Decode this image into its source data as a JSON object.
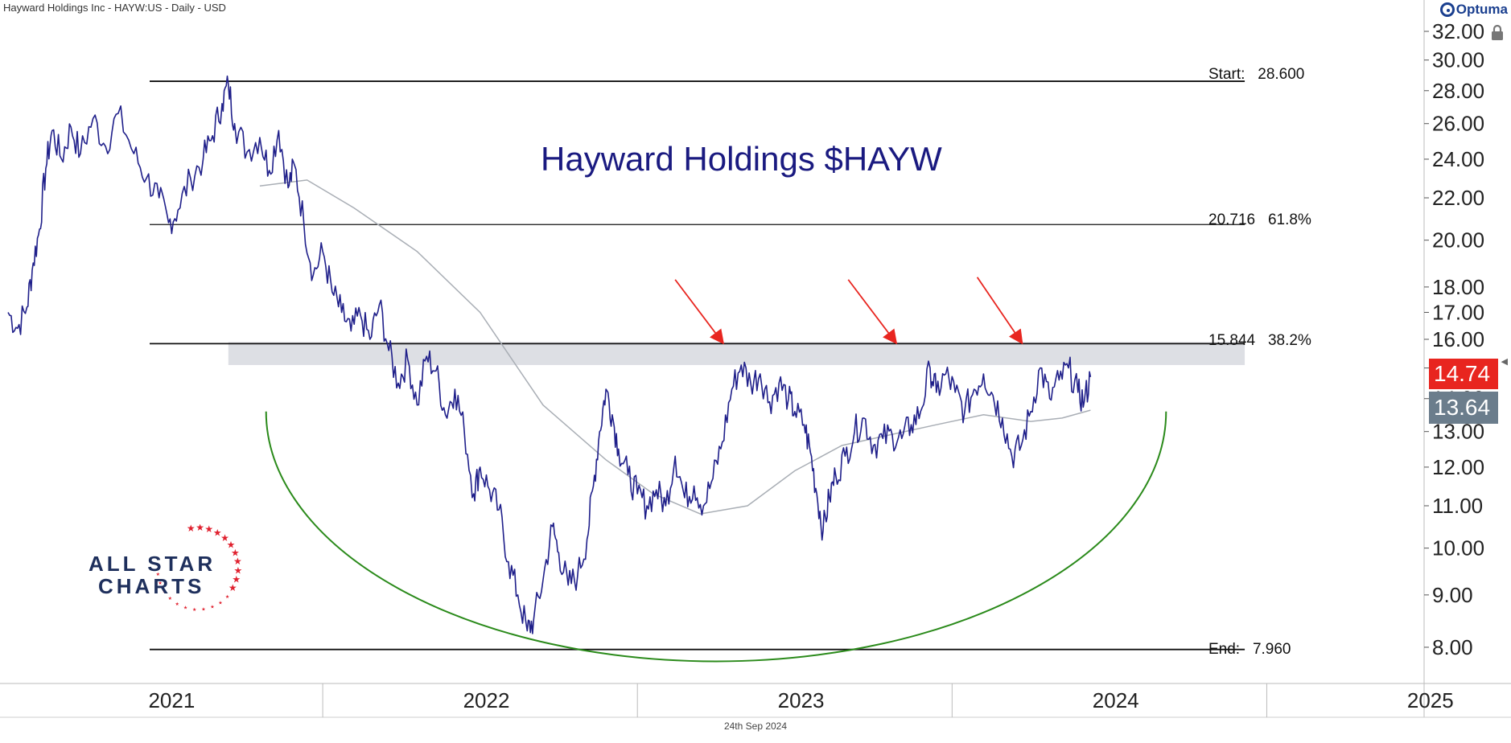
{
  "header": {
    "instrument": "Hayward Holdings Inc - HAYW:US - Daily - USD",
    "brand": "Optuma",
    "date_footer": "24th Sep 2024"
  },
  "logo": {
    "line1": "ALL STAR",
    "line2": "CHARTS",
    "star_color": "#e0202e",
    "text_color": "#1e2f5c"
  },
  "price_tags": {
    "last": "14.74",
    "moving_average": "13.64"
  },
  "colors": {
    "price": "#1f1f8a",
    "moving_average": "#a9aeb5",
    "arc": "#2a8a1a",
    "arrows": "#e8251f",
    "zone": "#d9dce1",
    "levels": "#111111",
    "tag_last": "#e8251f",
    "tag_ma": "#6b7d8c"
  },
  "chart_data": {
    "type": "line",
    "title": "Hayward Holdings $HAYW",
    "scale": "log",
    "ylim": [
      7.4,
      33.0
    ],
    "y_ticks": [
      "32.00",
      "30.00",
      "28.00",
      "26.00",
      "24.00",
      "22.00",
      "20.00",
      "18.00",
      "17.00",
      "16.00",
      "15.00",
      "14.00",
      "13.00",
      "12.00",
      "11.00",
      "10.00",
      "9.00",
      "8.00"
    ],
    "x_range": [
      2021.0,
      2025.5
    ],
    "x_labels": [
      "2021",
      "2022",
      "2023",
      "2024",
      "2025"
    ],
    "levels": [
      {
        "label": "Start:",
        "value_text": "28.600",
        "price": 28.6
      },
      {
        "label": "20.716",
        "value_text": "61.8%",
        "price": 20.716
      },
      {
        "label": "15.844",
        "value_text": "38.2%",
        "price": 15.844
      },
      {
        "label": "End:",
        "value_text": "7.960",
        "price": 7.96
      }
    ],
    "resistance_zone": [
      15.1,
      15.9
    ],
    "series": [
      {
        "points": [
          [
            2021.0,
            17.0
          ],
          [
            2021.03,
            16.4
          ],
          [
            2021.06,
            17.2
          ],
          [
            2021.08,
            19.0
          ],
          [
            2021.1,
            20.5
          ],
          [
            2021.12,
            23.5
          ],
          [
            2021.14,
            25.6
          ],
          [
            2021.17,
            24.0
          ],
          [
            2021.2,
            25.8
          ],
          [
            2021.23,
            24.3
          ],
          [
            2021.27,
            26.3
          ],
          [
            2021.31,
            24.7
          ],
          [
            2021.35,
            26.6
          ],
          [
            2021.4,
            24.3
          ],
          [
            2021.44,
            23.0
          ],
          [
            2021.48,
            22.0
          ],
          [
            2021.51,
            20.8
          ],
          [
            2021.54,
            21.4
          ],
          [
            2021.58,
            23.0
          ],
          [
            2021.62,
            24.0
          ],
          [
            2021.65,
            25.3
          ],
          [
            2021.68,
            27.2
          ],
          [
            2021.7,
            28.4
          ],
          [
            2021.72,
            26.0
          ],
          [
            2021.76,
            24.4
          ],
          [
            2021.8,
            25.2
          ],
          [
            2021.83,
            23.4
          ],
          [
            2021.86,
            25.6
          ],
          [
            2021.89,
            22.5
          ],
          [
            2021.91,
            23.7
          ],
          [
            2021.94,
            20.8
          ],
          [
            2021.97,
            18.5
          ],
          [
            2022.0,
            19.5
          ],
          [
            2022.03,
            17.8
          ],
          [
            2022.06,
            17.0
          ],
          [
            2022.09,
            16.3
          ],
          [
            2022.12,
            16.9
          ],
          [
            2022.15,
            16.0
          ],
          [
            2022.18,
            17.3
          ],
          [
            2022.21,
            15.6
          ],
          [
            2022.24,
            14.5
          ],
          [
            2022.27,
            15.3
          ],
          [
            2022.3,
            13.8
          ],
          [
            2022.33,
            15.4
          ],
          [
            2022.36,
            14.9
          ],
          [
            2022.39,
            13.5
          ],
          [
            2022.42,
            14.3
          ],
          [
            2022.45,
            13.0
          ],
          [
            2022.48,
            11.3
          ],
          [
            2022.5,
            12.0
          ],
          [
            2022.53,
            11.4
          ],
          [
            2022.56,
            10.9
          ],
          [
            2022.59,
            9.7
          ],
          [
            2022.62,
            9.0
          ],
          [
            2022.65,
            8.3
          ],
          [
            2022.67,
            8.5
          ],
          [
            2022.7,
            9.3
          ],
          [
            2022.73,
            10.5
          ],
          [
            2022.75,
            9.9
          ],
          [
            2022.78,
            9.2
          ],
          [
            2022.81,
            9.4
          ],
          [
            2022.84,
            10.2
          ],
          [
            2022.86,
            11.5
          ],
          [
            2022.88,
            13.0
          ],
          [
            2022.9,
            14.3
          ],
          [
            2022.92,
            13.5
          ],
          [
            2022.94,
            12.5
          ],
          [
            2022.97,
            11.8
          ],
          [
            2023.0,
            11.3
          ],
          [
            2023.03,
            11.0
          ],
          [
            2023.06,
            11.4
          ],
          [
            2023.09,
            11.0
          ],
          [
            2023.12,
            12.3
          ],
          [
            2023.15,
            11.2
          ],
          [
            2023.18,
            11.5
          ],
          [
            2023.21,
            11.0
          ],
          [
            2023.24,
            11.7
          ],
          [
            2023.27,
            12.7
          ],
          [
            2023.3,
            14.3
          ],
          [
            2023.33,
            15.1
          ],
          [
            2023.36,
            14.5
          ],
          [
            2023.39,
            14.8
          ],
          [
            2023.42,
            13.9
          ],
          [
            2023.45,
            14.5
          ],
          [
            2023.48,
            14.0
          ],
          [
            2023.5,
            13.6
          ],
          [
            2023.53,
            13.2
          ],
          [
            2023.55,
            12.4
          ],
          [
            2023.57,
            11.3
          ],
          [
            2023.59,
            10.4
          ],
          [
            2023.61,
            11.2
          ],
          [
            2023.63,
            11.8
          ],
          [
            2023.66,
            12.3
          ],
          [
            2023.69,
            13.0
          ],
          [
            2023.72,
            13.4
          ],
          [
            2023.75,
            12.6
          ],
          [
            2023.78,
            12.8
          ],
          [
            2023.81,
            12.9
          ],
          [
            2023.84,
            12.8
          ],
          [
            2023.87,
            13.2
          ],
          [
            2023.9,
            13.6
          ],
          [
            2023.93,
            15.0
          ],
          [
            2023.95,
            14.2
          ],
          [
            2023.98,
            14.8
          ],
          [
            2024.01,
            14.2
          ],
          [
            2024.04,
            13.6
          ],
          [
            2024.07,
            14.3
          ],
          [
            2024.1,
            14.8
          ],
          [
            2024.13,
            14.1
          ],
          [
            2024.16,
            13.4
          ],
          [
            2024.19,
            12.3
          ],
          [
            2024.22,
            12.6
          ],
          [
            2024.25,
            13.6
          ],
          [
            2024.28,
            15.0
          ],
          [
            2024.31,
            14.0
          ],
          [
            2024.34,
            14.6
          ],
          [
            2024.37,
            15.0
          ],
          [
            2024.4,
            14.2
          ],
          [
            2024.42,
            13.9
          ],
          [
            2024.44,
            14.7
          ]
        ]
      },
      {
        "points": [
          [
            2021.8,
            22.6
          ],
          [
            2021.95,
            22.9
          ],
          [
            2022.1,
            21.5
          ],
          [
            2022.3,
            19.5
          ],
          [
            2022.5,
            17.0
          ],
          [
            2022.7,
            13.8
          ],
          [
            2022.9,
            12.2
          ],
          [
            2023.05,
            11.3
          ],
          [
            2023.2,
            10.8
          ],
          [
            2023.35,
            11.0
          ],
          [
            2023.5,
            11.9
          ],
          [
            2023.65,
            12.6
          ],
          [
            2023.8,
            12.9
          ],
          [
            2023.95,
            13.2
          ],
          [
            2024.1,
            13.5
          ],
          [
            2024.25,
            13.3
          ],
          [
            2024.35,
            13.4
          ],
          [
            2024.44,
            13.64
          ]
        ]
      }
    ],
    "annotations": {
      "rounded_bottom": {
        "x_start": 2021.82,
        "x_end": 2024.68,
        "top_price": 13.6,
        "bottom_price": 7.75
      },
      "arrows": [
        {
          "from": [
            2023.12,
            18.3
          ],
          "to": [
            2023.27,
            15.9
          ]
        },
        {
          "from": [
            2023.67,
            18.3
          ],
          "to": [
            2023.82,
            15.9
          ]
        },
        {
          "from": [
            2024.08,
            18.4
          ],
          "to": [
            2024.22,
            15.9
          ]
        }
      ]
    }
  }
}
